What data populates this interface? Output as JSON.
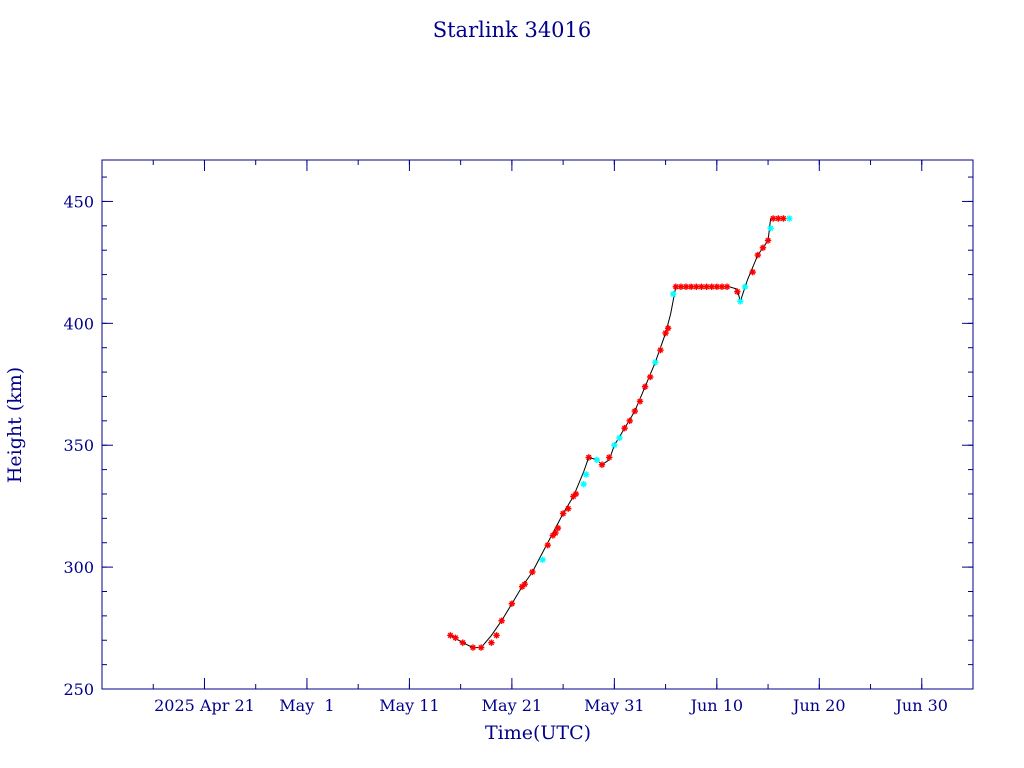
{
  "chart_data": {
    "type": "scatter",
    "title": "Starlink 34016",
    "xlabel": "Time(UTC)",
    "ylabel": "Height (km)",
    "x_unit": "date (UTC), 2025",
    "xlim": [
      "2025-04-11",
      "2025-07-05"
    ],
    "ylim": [
      250,
      467
    ],
    "x_tick_labels": [
      "2025 Apr 21",
      "May  1",
      "May 11",
      "May 21",
      "May 31",
      "Jun 10",
      "Jun 20",
      "Jun 30"
    ],
    "x_tick_dates": [
      "2025-04-21",
      "2025-05-01",
      "2025-05-11",
      "2025-05-21",
      "2025-05-31",
      "2025-06-10",
      "2025-06-20",
      "2025-06-30"
    ],
    "y_ticks": [
      250,
      300,
      350,
      400,
      450
    ],
    "grid": false,
    "colors": {
      "axis": "#00008b",
      "line": "#000000",
      "series_a": "#ff0000",
      "series_b": "#00ffff"
    },
    "line": {
      "x": [
        "2025-05-15T00:00",
        "2025-05-16T05:00",
        "2025-05-17T05:00",
        "2025-05-18T00:00",
        "2025-05-19T00:00",
        "2025-05-20T00:00",
        "2025-05-21T00:00",
        "2025-05-22T00:00",
        "2025-05-23T00:00",
        "2025-05-24T00:00",
        "2025-05-25T00:00",
        "2025-05-26T00:00",
        "2025-05-27T00:00",
        "2025-05-28T00:00",
        "2025-05-28T12:00",
        "2025-05-29T07:00",
        "2025-05-29T19:00",
        "2025-05-30T12:00",
        "2025-05-31T00:00",
        "2025-06-01T00:00",
        "2025-06-02T00:00",
        "2025-06-03T00:00",
        "2025-06-04T00:00",
        "2025-06-05T00:00",
        "2025-06-05T12:00",
        "2025-06-06T00:00",
        "2025-06-08T00:00",
        "2025-06-11T05:00",
        "2025-06-12T00:00",
        "2025-06-12T07:00",
        "2025-06-13T00:00",
        "2025-06-14T00:00",
        "2025-06-15T00:00",
        "2025-06-15T06:00",
        "2025-06-16T12:00",
        "2025-06-17T02:00"
      ],
      "y": [
        272,
        269,
        267,
        267,
        272,
        278,
        285,
        292,
        298,
        306,
        314,
        322,
        329,
        339,
        345,
        344,
        342,
        344,
        350,
        357,
        364,
        374,
        384,
        396,
        404,
        415,
        415,
        415,
        414,
        409,
        418,
        428,
        434,
        443,
        443,
        443
      ]
    },
    "series": [
      {
        "marker": "asterisk",
        "color": "#ff0000",
        "x": [
          "2025-05-15T00:00",
          "2025-05-15T12:00",
          "2025-05-16T05:00",
          "2025-05-17T05:00",
          "2025-05-18T00:00",
          "2025-05-19T00:00",
          "2025-05-19T12:00",
          "2025-05-20T00:00",
          "2025-05-21T00:00",
          "2025-05-22T00:00",
          "2025-05-22T06:00",
          "2025-05-23T00:00",
          "2025-05-24T12:00",
          "2025-05-25T00:00",
          "2025-05-25T06:00",
          "2025-05-25T12:00",
          "2025-05-26T00:00",
          "2025-05-26T12:00",
          "2025-05-27T00:00",
          "2025-05-27T06:00",
          "2025-05-28T12:00",
          "2025-05-29T19:00",
          "2025-05-30T12:00",
          "2025-06-01T00:00",
          "2025-06-01T12:00",
          "2025-06-02T00:00",
          "2025-06-02T12:00",
          "2025-06-03T00:00",
          "2025-06-03T12:00",
          "2025-06-04T12:00",
          "2025-06-05T00:00",
          "2025-06-05T06:00",
          "2025-06-06T00:00",
          "2025-06-06T12:00",
          "2025-06-07T00:00",
          "2025-06-07T12:00",
          "2025-06-08T00:00",
          "2025-06-08T12:00",
          "2025-06-09T00:00",
          "2025-06-09T12:00",
          "2025-06-10T00:00",
          "2025-06-10T12:00",
          "2025-06-11T00:00",
          "2025-06-12T00:00",
          "2025-06-13T12:00",
          "2025-06-14T00:00",
          "2025-06-14T12:00",
          "2025-06-15T00:00",
          "2025-06-15T12:00",
          "2025-06-16T00:00",
          "2025-06-16T12:00"
        ],
        "y": [
          272,
          271,
          269,
          267,
          267,
          269,
          272,
          278,
          285,
          292,
          293,
          298,
          309,
          313,
          314,
          316,
          322,
          324,
          329,
          330,
          345,
          342,
          345,
          357,
          360,
          364,
          368,
          374,
          378,
          389,
          396,
          398,
          415,
          415,
          415,
          415,
          415,
          415,
          415,
          415,
          415,
          415,
          415,
          413,
          421,
          428,
          431,
          434,
          443,
          443,
          443
        ]
      },
      {
        "marker": "asterisk",
        "color": "#00ffff",
        "x": [
          "2025-05-24T00:00",
          "2025-05-28T00:00",
          "2025-05-28T06:00",
          "2025-05-29T07:00",
          "2025-05-31T00:00",
          "2025-05-31T12:00",
          "2025-06-04T00:00",
          "2025-06-05T18:00",
          "2025-06-12T07:00",
          "2025-06-12T18:00",
          "2025-06-15T06:00",
          "2025-06-17T02:00"
        ],
        "y": [
          303,
          334,
          338,
          344,
          350,
          353,
          384,
          412,
          409,
          415,
          439,
          443
        ]
      }
    ]
  }
}
